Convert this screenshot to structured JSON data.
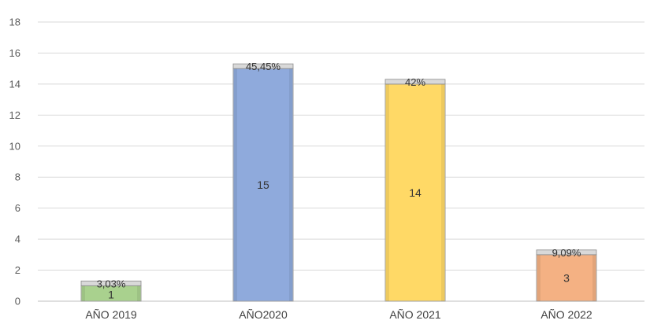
{
  "chart_data": {
    "type": "bar",
    "categories": [
      "AÑO 2019",
      "AÑO2020",
      "AÑO 2021",
      "AÑO 2022"
    ],
    "values": [
      1,
      15,
      14,
      3
    ],
    "percent_labels": [
      "3,03%",
      "45,45%",
      "42%",
      "9,09%"
    ],
    "value_labels": [
      "1",
      "15",
      "14",
      "3"
    ],
    "ylim": [
      0,
      18
    ],
    "yticks": [
      0,
      2,
      4,
      6,
      8,
      10,
      12,
      14,
      16,
      18
    ],
    "ytick_labels": [
      "0",
      "2",
      "4",
      "6",
      "8",
      "10",
      "12",
      "14",
      "16",
      "18"
    ],
    "grid": true,
    "legend": "none",
    "colors": [
      "#a9d18e",
      "#8faadc",
      "#ffd966",
      "#f4b183"
    ],
    "cap_color": "#d9d9d9"
  }
}
